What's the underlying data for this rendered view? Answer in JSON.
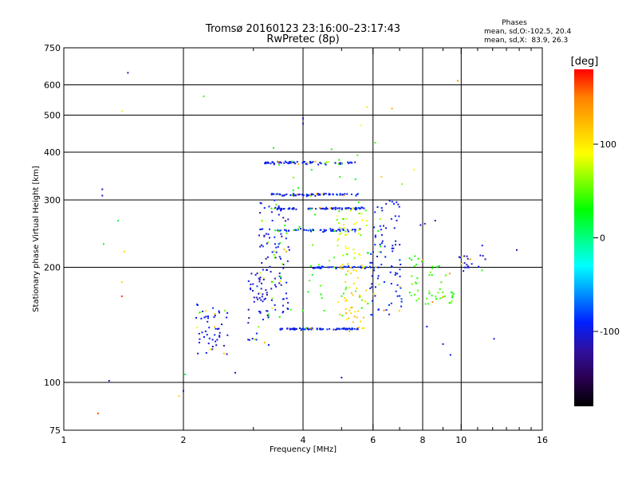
{
  "chart_data": {
    "type": "scatter",
    "title": "Tromsø 20160123 23:16:00–23:17:43",
    "subtitle": "RwPretec (8p)",
    "xlabel": "Frequency [MHz]",
    "ylabel": "Stationary phase Virtual Height [km]",
    "x_scale": "log",
    "y_scale": "log",
    "xlim": [
      1,
      16
    ],
    "ylim": [
      75,
      750
    ],
    "xticks": [
      1,
      2,
      4,
      6,
      8,
      10,
      16
    ],
    "x_minor_ticks": [
      3,
      5,
      7,
      9,
      11,
      12,
      13,
      14,
      15
    ],
    "yticks": [
      75,
      100,
      200,
      300,
      400,
      500,
      600,
      750
    ],
    "x_grid": [
      2,
      4,
      6,
      8,
      10
    ],
    "y_grid": [
      100,
      200,
      300,
      400,
      500,
      600
    ],
    "grid": true,
    "stats": {
      "heading": "Phases",
      "line1": "mean, sd,O:-102.5, 20.4",
      "line2": "mean, sd,X:  83.9, 26.3"
    },
    "colorbar": {
      "label": "[deg]",
      "min": -180,
      "max": 180,
      "ticks": [
        100,
        0,
        -100
      ],
      "colors": [
        "#000000",
        "#2a0050",
        "#3010a0",
        "#0020ff",
        "#0090ff",
        "#00ffff",
        "#00ff80",
        "#00ff00",
        "#80ff00",
        "#ffff00",
        "#ffc000",
        "#ff8000",
        "#ff0000"
      ]
    },
    "series": [
      {
        "trace": "F2 trace ~375 km",
        "x_range": [
          3.2,
          5.5
        ],
        "y": 375,
        "phase": -95,
        "count": 70,
        "spread": 0.012
      },
      {
        "trace": "trace ~310 km",
        "x_range": [
          3.3,
          5.5
        ],
        "y": 310,
        "phase": -95,
        "count": 70,
        "spread": 0.012
      },
      {
        "trace": "trace ~285 km",
        "x_range": [
          3.3,
          5.7
        ],
        "y": 285,
        "phase": -95,
        "count": 75,
        "spread": 0.01
      },
      {
        "trace": "trace ~250 km",
        "x_range": [
          3.4,
          5.6
        ],
        "y": 250,
        "phase": -90,
        "count": 55,
        "spread": 0.012
      },
      {
        "trace": "trace ~200 km",
        "x_range": [
          4.2,
          6.2
        ],
        "y": 200,
        "phase": -90,
        "count": 45,
        "spread": 0.012
      },
      {
        "trace": "trace ~140 km",
        "x_range": [
          3.5,
          5.5
        ],
        "y": 138,
        "phase": -95,
        "count": 85,
        "spread": 0.008
      },
      {
        "trace": "cluster 3.2-3.6 MHz",
        "x_range": [
          3.1,
          3.7
        ],
        "y_range": [
          150,
          300
        ],
        "phase": -100,
        "count": 110
      },
      {
        "trace": "cluster 2.9-3.3 MHz",
        "x_range": [
          2.9,
          3.3
        ],
        "y_range": [
          125,
          200
        ],
        "phase": -105,
        "count": 40
      },
      {
        "trace": "cluster 2.1-2.6 MHz",
        "x_range": [
          2.15,
          2.6
        ],
        "y_range": [
          118,
          160
        ],
        "phase": -100,
        "count": 55
      },
      {
        "trace": "cluster 5.9-7.1 MHz",
        "x_range": [
          5.9,
          7.1
        ],
        "y_range": [
          150,
          300
        ],
        "phase": -95,
        "count": 90
      },
      {
        "trace": "cluster 4.9-5.8 MHz",
        "x_range": [
          4.9,
          5.8
        ],
        "y_range": [
          135,
          205
        ],
        "phase": 110,
        "count": 50
      },
      {
        "trace": "cluster 7.4-9.6 MHz",
        "x_range": [
          7.4,
          9.6
        ],
        "y_range": [
          160,
          215
        ],
        "phase": 40,
        "count": 55
      },
      {
        "trace": "cluster 10-11.5 MHz",
        "x_range": [
          9.8,
          11.5
        ],
        "y_range": [
          195,
          215
        ],
        "phase": -110,
        "count": 20
      },
      {
        "trace": "oblique branch",
        "x_range": [
          4.8,
          5.8
        ],
        "y_range": [
          210,
          290
        ],
        "phase": 85,
        "count": 35
      },
      {
        "trace": "scattered",
        "x_range": [
          3.3,
          6.2
        ],
        "y_range": [
          145,
          430
        ],
        "phase": 40,
        "count": 60
      }
    ],
    "points": [
      {
        "x": 1.45,
        "y": 645,
        "phase": -110
      },
      {
        "x": 1.4,
        "y": 512,
        "phase": 95
      },
      {
        "x": 2.25,
        "y": 560,
        "phase": 40
      },
      {
        "x": 9.8,
        "y": 615,
        "phase": 140
      },
      {
        "x": 1.25,
        "y": 320,
        "phase": -110
      },
      {
        "x": 1.25,
        "y": 308,
        "phase": -110
      },
      {
        "x": 1.37,
        "y": 265,
        "phase": 20
      },
      {
        "x": 1.26,
        "y": 230,
        "phase": 20
      },
      {
        "x": 1.42,
        "y": 220,
        "phase": 110
      },
      {
        "x": 1.4,
        "y": 183,
        "phase": 110
      },
      {
        "x": 1.4,
        "y": 168,
        "phase": 170
      },
      {
        "x": 1.3,
        "y": 101,
        "phase": -110
      },
      {
        "x": 1.22,
        "y": 83,
        "phase": 160
      },
      {
        "x": 1.95,
        "y": 92,
        "phase": 110
      },
      {
        "x": 2.0,
        "y": 95,
        "phase": -120
      },
      {
        "x": 2.02,
        "y": 105,
        "phase": 10
      },
      {
        "x": 2.7,
        "y": 106,
        "phase": -110
      },
      {
        "x": 5.8,
        "y": 525,
        "phase": 100
      },
      {
        "x": 6.7,
        "y": 520,
        "phase": 130
      },
      {
        "x": 5.6,
        "y": 470,
        "phase": 90
      },
      {
        "x": 7.6,
        "y": 360,
        "phase": 95
      },
      {
        "x": 6.3,
        "y": 345,
        "phase": 110
      },
      {
        "x": 7.1,
        "y": 330,
        "phase": 60
      },
      {
        "x": 8.6,
        "y": 265,
        "phase": -110
      },
      {
        "x": 8.1,
        "y": 260,
        "phase": -110
      },
      {
        "x": 7.9,
        "y": 258,
        "phase": -110
      },
      {
        "x": 8.2,
        "y": 140,
        "phase": -100
      },
      {
        "x": 9.0,
        "y": 126,
        "phase": -100
      },
      {
        "x": 9.4,
        "y": 118,
        "phase": -100
      },
      {
        "x": 5.0,
        "y": 103,
        "phase": -110
      },
      {
        "x": 12.1,
        "y": 130,
        "phase": -100
      },
      {
        "x": 13.8,
        "y": 222,
        "phase": -110
      },
      {
        "x": 11.3,
        "y": 228,
        "phase": -100
      },
      {
        "x": 11.5,
        "y": 210,
        "phase": -110
      },
      {
        "x": 4.0,
        "y": 490,
        "phase": -110
      },
      {
        "x": 4.0,
        "y": 475,
        "phase": -110
      }
    ]
  }
}
